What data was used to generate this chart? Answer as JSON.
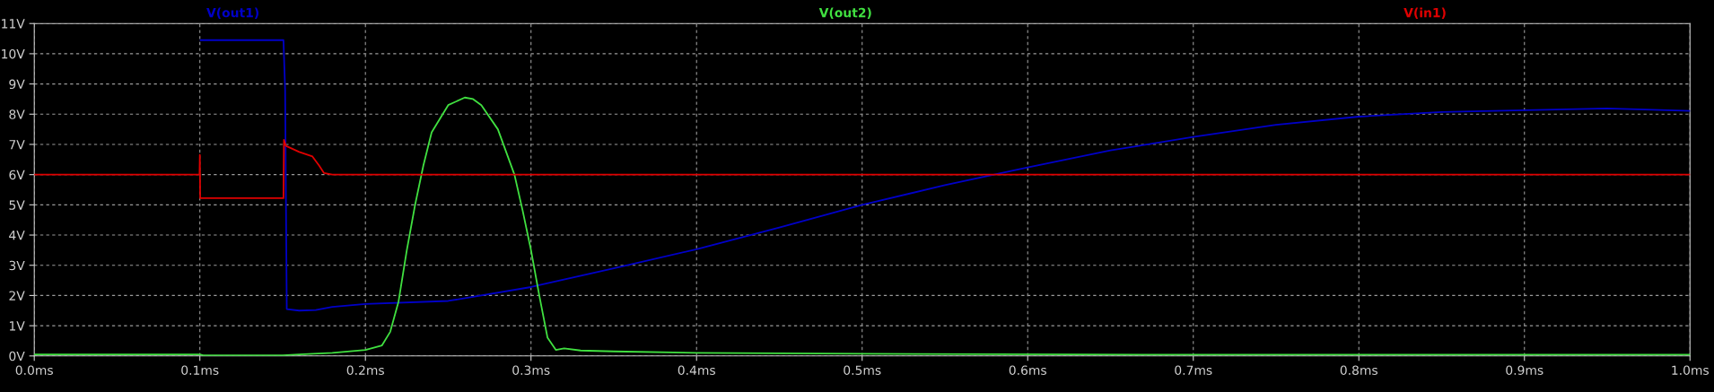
{
  "chart_data": {
    "type": "line",
    "xlim": [
      0,
      1.0
    ],
    "ylim": [
      0,
      11
    ],
    "xticks": [
      {
        "value": 0,
        "label": "0.0ms"
      },
      {
        "value": 0.1,
        "label": "0.1ms"
      },
      {
        "value": 0.2,
        "label": "0.2ms"
      },
      {
        "value": 0.3,
        "label": "0.3ms"
      },
      {
        "value": 0.4,
        "label": "0.4ms"
      },
      {
        "value": 0.5,
        "label": "0.5ms"
      },
      {
        "value": 0.6,
        "label": "0.6ms"
      },
      {
        "value": 0.7,
        "label": "0.7ms"
      },
      {
        "value": 0.8,
        "label": "0.8ms"
      },
      {
        "value": 0.9,
        "label": "0.9ms"
      },
      {
        "value": 1.0,
        "label": "1.0ms"
      }
    ],
    "yticks": [
      {
        "value": 0,
        "label": "0V"
      },
      {
        "value": 1,
        "label": "1V"
      },
      {
        "value": 2,
        "label": "2V"
      },
      {
        "value": 3,
        "label": "3V"
      },
      {
        "value": 4,
        "label": "4V"
      },
      {
        "value": 5,
        "label": "5V"
      },
      {
        "value": 6,
        "label": "6V"
      },
      {
        "value": 7,
        "label": "7V"
      },
      {
        "value": 8,
        "label": "8V"
      },
      {
        "value": 9,
        "label": "9V"
      },
      {
        "value": 10,
        "label": "10V"
      },
      {
        "value": 11,
        "label": "11V"
      }
    ],
    "grid": true,
    "line_style": "solid",
    "marker": "none",
    "series": [
      {
        "name": "V(out1)",
        "color": "#0000c8",
        "x": [
          0.1005,
          0.1505,
          0.1515,
          0.1525,
          0.16,
          0.17,
          0.18,
          0.2,
          0.25,
          0.3,
          0.35,
          0.4,
          0.45,
          0.5,
          0.55,
          0.6,
          0.65,
          0.7,
          0.75,
          0.8,
          0.85,
          0.9,
          0.95,
          1.0
        ],
        "values": [
          10.45,
          10.45,
          8.8,
          1.55,
          1.5,
          1.52,
          1.62,
          1.72,
          1.82,
          2.28,
          2.9,
          3.53,
          4.25,
          5.0,
          5.65,
          6.24,
          6.8,
          7.25,
          7.65,
          7.92,
          8.07,
          8.13,
          8.19,
          8.11
        ]
      },
      {
        "name": "V(out2)",
        "color": "#40e040",
        "x": [
          0,
          0.1,
          0.102,
          0.15,
          0.16,
          0.18,
          0.2,
          0.21,
          0.215,
          0.22,
          0.225,
          0.23,
          0.235,
          0.24,
          0.25,
          0.26,
          0.265,
          0.27,
          0.28,
          0.29,
          0.295,
          0.3,
          0.305,
          0.31,
          0.315,
          0.32,
          0.33,
          0.35,
          0.4,
          0.5,
          0.63,
          0.7,
          1.0
        ],
        "values": [
          0.05,
          0.05,
          0.02,
          0.02,
          0.05,
          0.1,
          0.2,
          0.35,
          0.8,
          1.8,
          3.5,
          5.0,
          6.3,
          7.4,
          8.3,
          8.55,
          8.5,
          8.3,
          7.5,
          6.0,
          4.8,
          3.5,
          2.0,
          0.6,
          0.2,
          0.25,
          0.18,
          0.15,
          0.1,
          0.07,
          0.05,
          0.04,
          0.04
        ]
      },
      {
        "name": "V(in1)",
        "color": "#e00000",
        "x": [
          0,
          0.0998,
          0.1,
          0.1002,
          0.1505,
          0.1508,
          0.152,
          0.16,
          0.168,
          0.172,
          0.175,
          0.18,
          1.0
        ],
        "values": [
          6.0,
          6.0,
          6.65,
          5.22,
          5.22,
          7.15,
          6.95,
          6.75,
          6.6,
          6.3,
          6.05,
          6.0,
          6.0
        ]
      }
    ]
  }
}
